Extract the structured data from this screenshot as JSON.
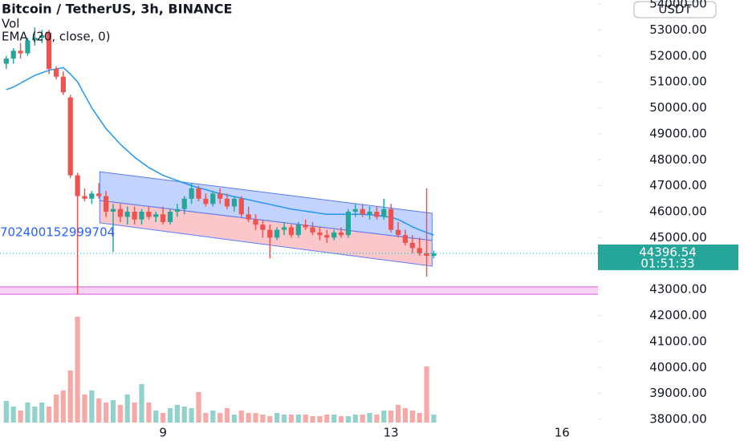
{
  "chart_data": {
    "type": "candlestick",
    "title": "Bitcoin / TetherUS, 3h, BINANCE",
    "indicators": [
      "Vol",
      "EMA (20, close, 0)"
    ],
    "currency": "USDT",
    "annotation": "702400152999704",
    "last_price": {
      "value": 44396.54,
      "label": "44396.54"
    },
    "countdown": "01:51:33",
    "up_color": "#26a69a",
    "down_color": "#ef5350",
    "ema_color": "#2196f3",
    "xlim": [
      6.14,
      16.63
    ],
    "xticks": [
      9,
      13,
      16
    ],
    "ylim": [
      38000,
      54000
    ],
    "yticks": [
      {
        "value": 38000,
        "label": "38000.00"
      },
      {
        "value": 39000,
        "label": "39000.00"
      },
      {
        "value": 40000,
        "label": "40000.00"
      },
      {
        "value": 41000,
        "label": "41000.00"
      },
      {
        "value": 42000,
        "label": "42000.00"
      },
      {
        "value": 43000,
        "label": "43000.00"
      },
      {
        "value": 44000,
        "label": "44000.00"
      },
      {
        "value": 45000,
        "label": "45000.00"
      },
      {
        "value": 46000,
        "label": "46000.00"
      },
      {
        "value": 47000,
        "label": "47000.00"
      },
      {
        "value": 48000,
        "label": "48000.00"
      },
      {
        "value": 49000,
        "label": "49000.00"
      },
      {
        "value": 50000,
        "label": "50000.00"
      },
      {
        "value": 51000,
        "label": "51000.00"
      },
      {
        "value": 52000,
        "label": "52000.00"
      },
      {
        "value": 53000,
        "label": "53000.00"
      },
      {
        "value": 54000,
        "label": "54000.00"
      }
    ],
    "x": [
      6.25,
      6.375,
      6.5,
      6.625,
      6.75,
      6.875,
      7,
      7.125,
      7.25,
      7.375,
      7.5,
      7.625,
      7.75,
      7.875,
      8,
      8.125,
      8.25,
      8.375,
      8.5,
      8.625,
      8.75,
      8.875,
      9,
      9.125,
      9.25,
      9.375,
      9.5,
      9.625,
      9.75,
      9.875,
      10,
      10.125,
      10.25,
      10.375,
      10.5,
      10.625,
      10.75,
      10.875,
      11,
      11.125,
      11.25,
      11.375,
      11.5,
      11.625,
      11.75,
      11.875,
      12,
      12.125,
      12.25,
      12.375,
      12.5,
      12.625,
      12.75,
      12.875,
      13,
      13.125,
      13.25,
      13.375,
      13.5,
      13.625,
      13.75
    ],
    "open": [
      51700,
      51900,
      52200,
      52100,
      52600,
      52700,
      52900,
      51500,
      51200,
      50400,
      47400,
      46600,
      46500,
      46700,
      46600,
      46000,
      46100,
      45800,
      46000,
      45700,
      46000,
      45800,
      45900,
      45600,
      46000,
      46100,
      46500,
      46900,
      46500,
      46300,
      46700,
      46500,
      46200,
      46500,
      45900,
      45700,
      45500,
      45300,
      45000,
      45300,
      45400,
      45100,
      45500,
      45400,
      45200,
      45100,
      45000,
      45200,
      45100,
      46000,
      46100,
      45900,
      46000,
      45800,
      46100,
      45300,
      45100,
      44800,
      44600,
      44400,
      44300
    ],
    "high": [
      52000,
      52300,
      52500,
      52700,
      53100,
      53000,
      53000,
      51600,
      51400,
      50500,
      47500,
      46900,
      46800,
      47100,
      46800,
      46300,
      46300,
      46200,
      46200,
      46100,
      46200,
      46000,
      46200,
      46100,
      46300,
      46600,
      47100,
      47000,
      46700,
      46800,
      46900,
      46700,
      46600,
      46600,
      46200,
      45900,
      45700,
      45500,
      45400,
      45600,
      45500,
      45600,
      45700,
      45600,
      45400,
      45300,
      45300,
      45400,
      46100,
      46300,
      46300,
      46200,
      46200,
      46500,
      46300,
      45600,
      45300,
      45100,
      45000,
      46900,
      44500
    ],
    "low": [
      51500,
      51700,
      51900,
      52000,
      52400,
      52500,
      51300,
      51100,
      50500,
      47300,
      42820,
      46400,
      46300,
      46500,
      45800,
      44450,
      45600,
      45500,
      45500,
      45500,
      45700,
      45600,
      45500,
      45500,
      45800,
      45900,
      46300,
      46400,
      46200,
      46200,
      46300,
      46100,
      46000,
      45800,
      45600,
      45300,
      45000,
      44200,
      44900,
      45100,
      45000,
      45000,
      45300,
      45100,
      44900,
      44800,
      44900,
      45000,
      45000,
      45800,
      45800,
      45700,
      45700,
      45700,
      45200,
      45000,
      44700,
      44400,
      44300,
      43500,
      44200
    ],
    "close": [
      51900,
      52200,
      52100,
      52600,
      52700,
      52800,
      51500,
      51200,
      50600,
      47400,
      46600,
      46500,
      46700,
      46600,
      46000,
      46100,
      45800,
      46000,
      45700,
      46000,
      45800,
      45900,
      45600,
      46000,
      46100,
      46500,
      46900,
      46500,
      46300,
      46700,
      46500,
      46200,
      46500,
      45900,
      45700,
      45500,
      45300,
      45000,
      45300,
      45400,
      45100,
      45500,
      45400,
      45200,
      45100,
      45000,
      45200,
      45100,
      46000,
      46100,
      45900,
      46000,
      45800,
      46100,
      45300,
      45100,
      44800,
      44600,
      44400,
      44300,
      44396.54
    ],
    "volume": [
      27,
      20,
      15,
      25,
      20,
      25,
      20,
      35,
      40,
      65,
      132,
      35,
      40,
      30,
      25,
      28,
      22,
      35,
      25,
      48,
      25,
      15,
      12,
      18,
      22,
      20,
      18,
      38,
      12,
      15,
      12,
      18,
      10,
      15,
      12,
      12,
      10,
      8,
      12,
      10,
      10,
      10,
      10,
      8,
      8,
      10,
      10,
      8,
      8,
      10,
      10,
      12,
      10,
      15,
      15,
      22,
      18,
      15,
      12,
      70,
      10
    ],
    "ema": [
      50700,
      50800,
      50950,
      51100,
      51250,
      51350,
      51450,
      51500,
      51550,
      51300,
      51000,
      50500,
      50000,
      49600,
      49200,
      48900,
      48600,
      48350,
      48100,
      47900,
      47700,
      47550,
      47400,
      47300,
      47200,
      47100,
      47000,
      46920,
      46850,
      46770,
      46700,
      46640,
      46580,
      46520,
      46460,
      46400,
      46340,
      46280,
      46220,
      46160,
      46100,
      46060,
      46020,
      45980,
      45940,
      45900,
      45900,
      45900,
      45900,
      45900,
      45900,
      45880,
      45860,
      45820,
      45780,
      45700,
      45560,
      45420,
      45300,
      45200,
      45100
    ],
    "channel": {
      "x": [
        7.89,
        13.72
      ],
      "top": [
        47540,
        45940
      ],
      "mid": [
        46430,
        44890
      ],
      "bottom": [
        45570,
        43900
      ]
    },
    "levels": [
      43100,
      42820
    ]
  }
}
